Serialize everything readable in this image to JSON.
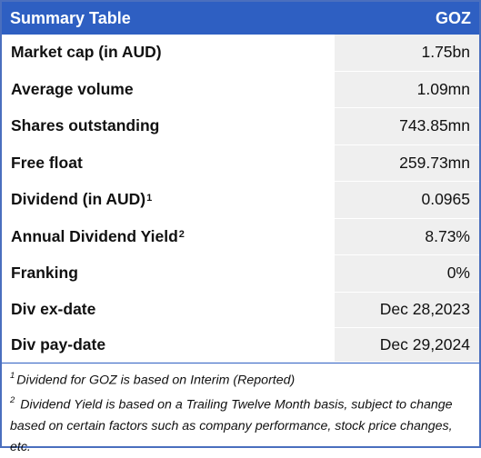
{
  "header": {
    "title": "Summary Table",
    "ticker": "GOZ"
  },
  "rows": [
    {
      "label": "Market cap (in AUD)",
      "sup": "",
      "value": "1.75bn"
    },
    {
      "label": "Average volume",
      "sup": "",
      "value": "1.09mn"
    },
    {
      "label": "Shares outstanding",
      "sup": "",
      "value": "743.85mn"
    },
    {
      "label": "Free float",
      "sup": "",
      "value": "259.73mn"
    },
    {
      "label": "Dividend (in AUD)",
      "sup": "1",
      "value": "0.0965"
    },
    {
      "label": "Annual Dividend Yield",
      "sup": "2",
      "value": "8.73%"
    },
    {
      "label": "Franking",
      "sup": "",
      "value": "0%"
    },
    {
      "label": "Div ex-date",
      "sup": "",
      "value": "Dec 28,2023"
    },
    {
      "label": "Div pay-date",
      "sup": "",
      "value": "Dec 29,2024"
    }
  ],
  "footnotes": [
    {
      "marker": "1",
      "text": "Dividend for GOZ is based on Interim (Reported)"
    },
    {
      "marker": "2",
      "text": " Dividend Yield is based on a Trailing Twelve Month basis, subject to change based on certain factors such as company performance, stock price changes, etc."
    }
  ],
  "colors": {
    "header_bg": "#2e5fc2",
    "header_text": "#ffffff",
    "border": "#4a6fbe",
    "value_bg": "#efefef"
  }
}
